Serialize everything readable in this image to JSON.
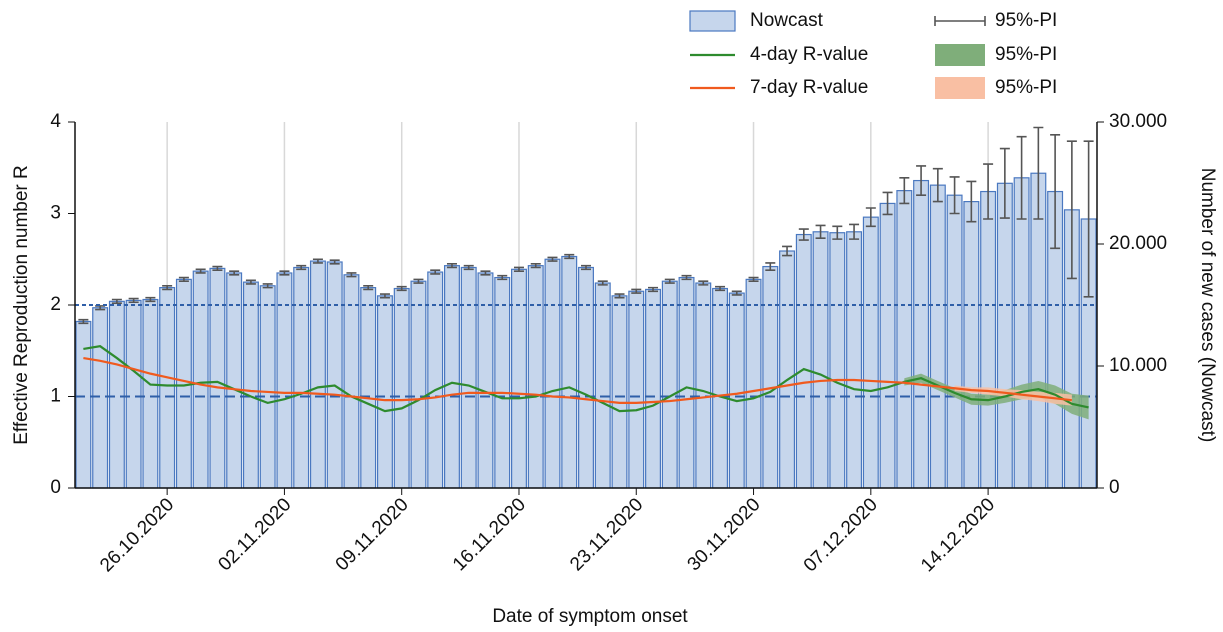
{
  "chart_data": {
    "type": "bar-line",
    "xlabel": "Date of symptom onset",
    "ylabel": "Effective Reproduction number R",
    "y2label": "Number of new cases (Nowcast)",
    "x": [
      "2020-10-21",
      "2020-10-22",
      "2020-10-23",
      "2020-10-24",
      "2020-10-25",
      "2020-10-26",
      "2020-10-27",
      "2020-10-28",
      "2020-10-29",
      "2020-10-30",
      "2020-10-31",
      "2020-11-01",
      "2020-11-02",
      "2020-11-03",
      "2020-11-04",
      "2020-11-05",
      "2020-11-06",
      "2020-11-07",
      "2020-11-08",
      "2020-11-09",
      "2020-11-10",
      "2020-11-11",
      "2020-11-12",
      "2020-11-13",
      "2020-11-14",
      "2020-11-15",
      "2020-11-16",
      "2020-11-17",
      "2020-11-18",
      "2020-11-19",
      "2020-11-20",
      "2020-11-21",
      "2020-11-22",
      "2020-11-23",
      "2020-11-24",
      "2020-11-25",
      "2020-11-26",
      "2020-11-27",
      "2020-11-28",
      "2020-11-29",
      "2020-11-30",
      "2020-12-01",
      "2020-12-02",
      "2020-12-03",
      "2020-12-04",
      "2020-12-05",
      "2020-12-06",
      "2020-12-07",
      "2020-12-08",
      "2020-12-09",
      "2020-12-10",
      "2020-12-11",
      "2020-12-12",
      "2020-12-13",
      "2020-12-14",
      "2020-12-15",
      "2020-12-16",
      "2020-12-17",
      "2020-12-18",
      "2020-12-19",
      "2020-12-20"
    ],
    "xticks": [
      {
        "value": "2020-10-26",
        "label": "26.10.2020"
      },
      {
        "value": "2020-11-02",
        "label": "02.11.2020"
      },
      {
        "value": "2020-11-09",
        "label": "09.11.2020"
      },
      {
        "value": "2020-11-16",
        "label": "16.11.2020"
      },
      {
        "value": "2020-11-23",
        "label": "23.11.2020"
      },
      {
        "value": "2020-11-30",
        "label": "30.11.2020"
      },
      {
        "value": "2020-12-07",
        "label": "07.12.2020"
      },
      {
        "value": "2020-12-14",
        "label": "14.12.2020"
      }
    ],
    "ylim": [
      0,
      4
    ],
    "yticks": [
      0,
      1,
      2,
      3,
      4
    ],
    "y2lim": [
      0,
      30000
    ],
    "y2ticks": [
      0,
      {
        "value": 10000,
        "label": "10.000"
      },
      {
        "value": 20000,
        "label": "20.000"
      },
      {
        "value": 30000,
        "label": "30.000"
      }
    ],
    "reference_lines": [
      {
        "value": 2,
        "style": "dotted",
        "color": "#2f5fa8"
      },
      {
        "value": 1,
        "style": "dashed",
        "color": "#2f5fa8"
      }
    ],
    "series": [
      {
        "name": "Nowcast",
        "type": "bar",
        "axis": "y2",
        "color": "#c6d6ec",
        "edge_color": "#4a78c0",
        "error_name": "95%-PI",
        "error_color": "#555555",
        "values": [
          13650,
          14775,
          15300,
          15375,
          15450,
          16425,
          17100,
          17775,
          18000,
          17625,
          16875,
          16575,
          17625,
          18075,
          18600,
          18525,
          17475,
          16425,
          15750,
          16350,
          16950,
          17700,
          18225,
          18075,
          17625,
          17250,
          17925,
          18225,
          18750,
          18975,
          18075,
          16800,
          15750,
          16125,
          16275,
          16950,
          17250,
          16800,
          16350,
          15975,
          17100,
          18150,
          19425,
          20775,
          21000,
          20925,
          21000,
          22200,
          23325,
          24375,
          25200,
          24825,
          24000,
          23475,
          24300,
          24975,
          25425,
          25800,
          24300,
          22800,
          22050
        ],
        "error": [
          150,
          150,
          150,
          150,
          150,
          150,
          150,
          150,
          150,
          150,
          150,
          150,
          150,
          150,
          150,
          150,
          150,
          150,
          150,
          150,
          150,
          150,
          150,
          150,
          150,
          150,
          150,
          150,
          150,
          150,
          150,
          150,
          150,
          150,
          150,
          150,
          150,
          150,
          150,
          150,
          150,
          300,
          375,
          450,
          525,
          525,
          600,
          750,
          900,
          1050,
          1200,
          1350,
          1500,
          1650,
          2250,
          2850,
          3375,
          3750,
          4650,
          5625,
          6375
        ]
      },
      {
        "name": "4-day R-value",
        "type": "line",
        "color": "#2e8b2e",
        "band_name": "95%-PI",
        "band_color": "#7fae7a",
        "values": [
          1.52,
          1.55,
          1.42,
          1.28,
          1.13,
          1.12,
          1.12,
          1.15,
          1.16,
          1.08,
          1.0,
          0.93,
          0.97,
          1.03,
          1.1,
          1.12,
          1.0,
          0.92,
          0.84,
          0.87,
          0.96,
          1.07,
          1.15,
          1.12,
          1.05,
          0.98,
          0.98,
          1.0,
          1.06,
          1.1,
          1.02,
          0.93,
          0.84,
          0.85,
          0.9,
          1.0,
          1.1,
          1.06,
          1.0,
          0.95,
          0.98,
          1.05,
          1.18,
          1.3,
          1.24,
          1.15,
          1.08,
          1.06,
          1.1,
          1.16,
          1.2,
          1.12,
          1.04,
          0.97,
          0.96,
          1.0,
          1.05,
          1.08,
          1.02,
          0.92,
          0.88
        ],
        "lower": [
          null,
          null,
          null,
          null,
          null,
          null,
          null,
          null,
          null,
          null,
          null,
          null,
          null,
          null,
          null,
          null,
          null,
          null,
          null,
          null,
          null,
          null,
          null,
          null,
          null,
          null,
          null,
          null,
          null,
          null,
          null,
          null,
          null,
          null,
          null,
          null,
          null,
          null,
          null,
          null,
          null,
          null,
          null,
          null,
          null,
          null,
          null,
          null,
          null,
          1.12,
          1.15,
          1.07,
          0.99,
          0.91,
          0.9,
          0.93,
          0.97,
          0.99,
          0.92,
          0.81,
          0.75
        ],
        "upper": [
          null,
          null,
          null,
          null,
          null,
          null,
          null,
          null,
          null,
          null,
          null,
          null,
          null,
          null,
          null,
          null,
          null,
          null,
          null,
          null,
          null,
          null,
          null,
          null,
          null,
          null,
          null,
          null,
          null,
          null,
          null,
          null,
          null,
          null,
          null,
          null,
          null,
          null,
          null,
          null,
          null,
          null,
          null,
          null,
          null,
          null,
          null,
          null,
          null,
          1.2,
          1.25,
          1.17,
          1.09,
          1.03,
          1.02,
          1.07,
          1.13,
          1.17,
          1.12,
          1.03,
          1.01
        ]
      },
      {
        "name": "7-day R-value",
        "type": "line",
        "color": "#f05a1e",
        "band_name": "95%-PI",
        "band_color": "#f9bfa3",
        "values": [
          1.42,
          1.39,
          1.35,
          1.3,
          1.25,
          1.21,
          1.17,
          1.13,
          1.1,
          1.08,
          1.06,
          1.05,
          1.04,
          1.04,
          1.03,
          1.02,
          1.0,
          0.98,
          0.96,
          0.96,
          0.97,
          0.99,
          1.02,
          1.04,
          1.04,
          1.04,
          1.03,
          1.02,
          1.0,
          0.99,
          0.97,
          0.95,
          0.93,
          0.93,
          0.94,
          0.95,
          0.97,
          0.99,
          1.01,
          1.03,
          1.06,
          1.09,
          1.12,
          1.15,
          1.17,
          1.18,
          1.18,
          1.17,
          1.16,
          1.15,
          1.13,
          1.11,
          1.09,
          1.07,
          1.06,
          1.04,
          1.02,
          1.0,
          0.98,
          0.96,
          null
        ],
        "lower": [
          null,
          null,
          null,
          null,
          null,
          null,
          null,
          null,
          null,
          null,
          null,
          null,
          null,
          null,
          null,
          null,
          null,
          null,
          null,
          null,
          null,
          null,
          null,
          null,
          null,
          null,
          null,
          null,
          null,
          null,
          null,
          null,
          null,
          null,
          null,
          null,
          null,
          null,
          null,
          null,
          null,
          null,
          null,
          null,
          null,
          null,
          null,
          null,
          null,
          null,
          null,
          null,
          1.06,
          1.04,
          1.02,
          1.0,
          0.97,
          0.95,
          0.92,
          0.9,
          null
        ],
        "upper": [
          null,
          null,
          null,
          null,
          null,
          null,
          null,
          null,
          null,
          null,
          null,
          null,
          null,
          null,
          null,
          null,
          null,
          null,
          null,
          null,
          null,
          null,
          null,
          null,
          null,
          null,
          null,
          null,
          null,
          null,
          null,
          null,
          null,
          null,
          null,
          null,
          null,
          null,
          null,
          null,
          null,
          null,
          null,
          null,
          null,
          null,
          null,
          null,
          null,
          null,
          null,
          null,
          1.12,
          1.1,
          1.1,
          1.08,
          1.07,
          1.05,
          1.04,
          1.02,
          null
        ]
      }
    ],
    "grid": "x"
  }
}
